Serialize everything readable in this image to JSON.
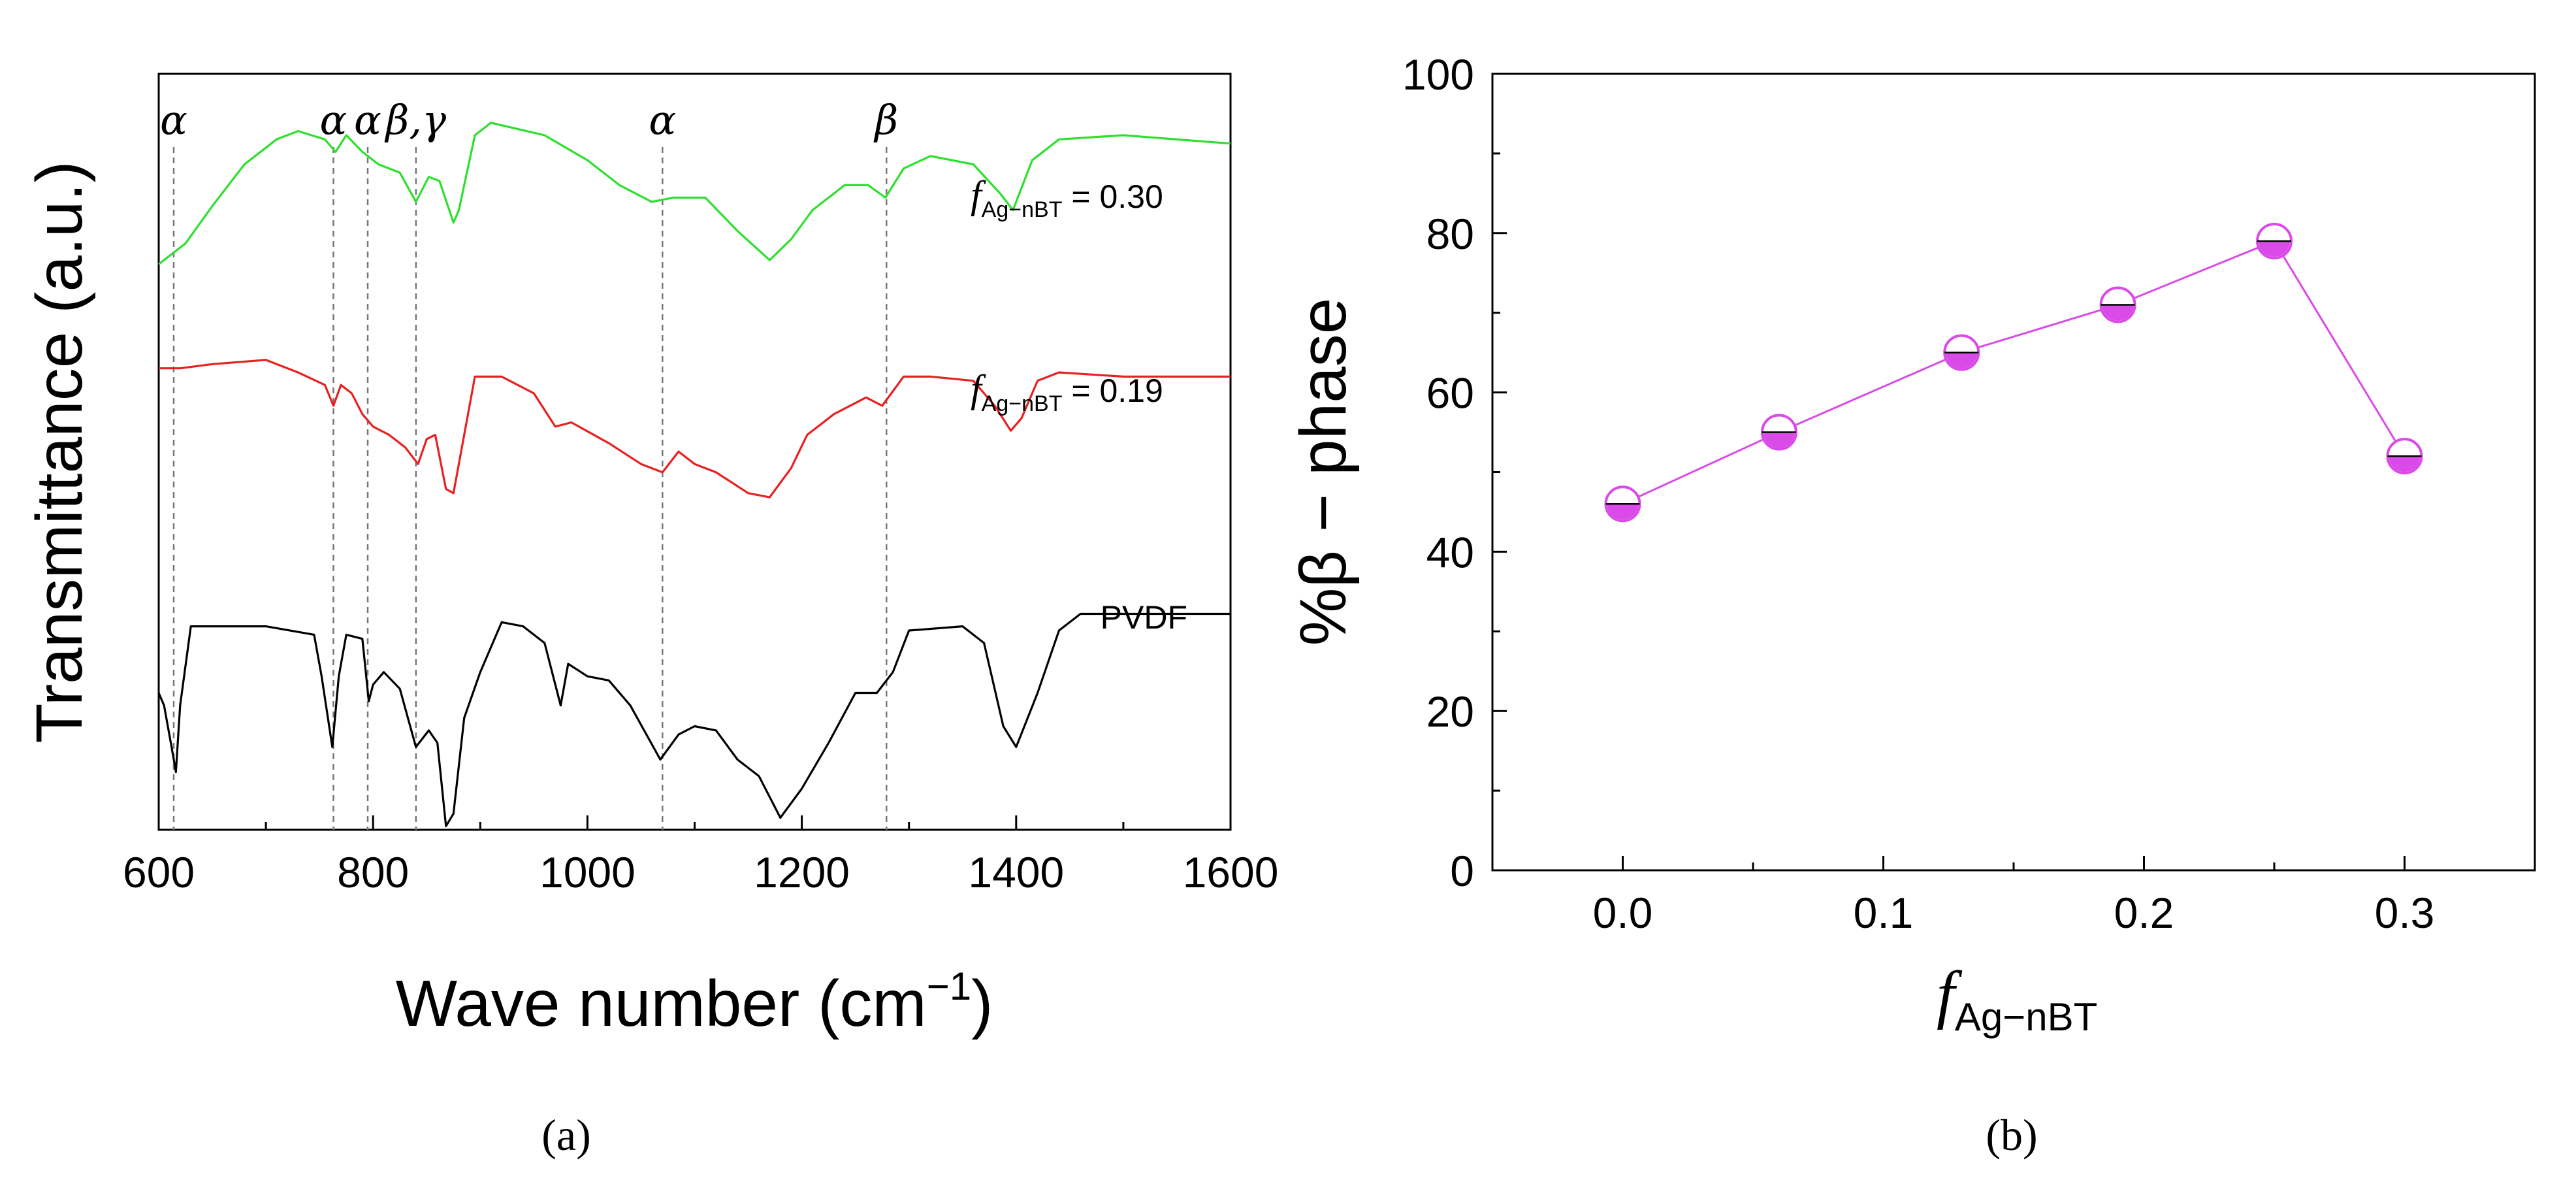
{
  "chart_data": [
    {
      "type": "line",
      "panel": "a",
      "caption": "(a)",
      "xlabel": "Wave number (cm",
      "xlabel_sup": "−1",
      "xlabel_close": ")",
      "ylabel": "Transmittance (a.u.)",
      "xlim": [
        600,
        1600
      ],
      "xticks": [
        "600",
        "800",
        "1000",
        "1200",
        "1400",
        "1600"
      ],
      "peak_markers": [
        {
          "label": "α",
          "x": 614
        },
        {
          "label": "α",
          "x": 763
        },
        {
          "label": "α",
          "x": 795
        },
        {
          "label": "β,γ",
          "x": 840
        },
        {
          "label": "α",
          "x": 1070
        },
        {
          "label": "β",
          "x": 1279
        }
      ],
      "series": [
        {
          "name": "PVDF",
          "label": "PVDF",
          "color": "#000000",
          "points": [
            [
              600,
              0.58
            ],
            [
              605,
              0.55
            ],
            [
              612,
              0.45
            ],
            [
              616,
              0.39
            ],
            [
              620,
              0.55
            ],
            [
              630,
              0.74
            ],
            [
              700,
              0.74
            ],
            [
              745,
              0.72
            ],
            [
              752,
              0.62
            ],
            [
              762,
              0.45
            ],
            [
              768,
              0.62
            ],
            [
              775,
              0.72
            ],
            [
              790,
              0.71
            ],
            [
              796,
              0.56
            ],
            [
              800,
              0.6
            ],
            [
              810,
              0.63
            ],
            [
              825,
              0.59
            ],
            [
              840,
              0.45
            ],
            [
              852,
              0.49
            ],
            [
              860,
              0.46
            ],
            [
              868,
              0.26
            ],
            [
              875,
              0.29
            ],
            [
              885,
              0.52
            ],
            [
              900,
              0.63
            ],
            [
              920,
              0.75
            ],
            [
              940,
              0.74
            ],
            [
              960,
              0.7
            ],
            [
              975,
              0.55
            ],
            [
              982,
              0.65
            ],
            [
              1000,
              0.62
            ],
            [
              1020,
              0.61
            ],
            [
              1040,
              0.55
            ],
            [
              1068,
              0.42
            ],
            [
              1085,
              0.48
            ],
            [
              1100,
              0.5
            ],
            [
              1120,
              0.49
            ],
            [
              1140,
              0.42
            ],
            [
              1160,
              0.38
            ],
            [
              1180,
              0.28
            ],
            [
              1200,
              0.35
            ],
            [
              1225,
              0.46
            ],
            [
              1250,
              0.58
            ],
            [
              1270,
              0.58
            ],
            [
              1285,
              0.63
            ],
            [
              1300,
              0.73
            ],
            [
              1350,
              0.74
            ],
            [
              1370,
              0.7
            ],
            [
              1388,
              0.5
            ],
            [
              1400,
              0.45
            ],
            [
              1420,
              0.58
            ],
            [
              1440,
              0.73
            ],
            [
              1460,
              0.77
            ],
            [
              1600,
              0.77
            ]
          ]
        },
        {
          "name": "f_Ag-nBT = 0.19",
          "label_f": "f",
          "label_sub": "Ag−nBT",
          "label_val": " = 0.19",
          "color": "#e82020",
          "points": [
            [
              600,
              1.36
            ],
            [
              620,
              1.36
            ],
            [
              650,
              1.37
            ],
            [
              700,
              1.38
            ],
            [
              730,
              1.35
            ],
            [
              755,
              1.32
            ],
            [
              763,
              1.27
            ],
            [
              770,
              1.32
            ],
            [
              780,
              1.3
            ],
            [
              790,
              1.25
            ],
            [
              800,
              1.22
            ],
            [
              815,
              1.2
            ],
            [
              830,
              1.17
            ],
            [
              842,
              1.13
            ],
            [
              850,
              1.19
            ],
            [
              858,
              1.2
            ],
            [
              868,
              1.07
            ],
            [
              875,
              1.06
            ],
            [
              885,
              1.2
            ],
            [
              895,
              1.34
            ],
            [
              920,
              1.34
            ],
            [
              950,
              1.3
            ],
            [
              970,
              1.22
            ],
            [
              985,
              1.23
            ],
            [
              1020,
              1.18
            ],
            [
              1050,
              1.13
            ],
            [
              1070,
              1.11
            ],
            [
              1085,
              1.16
            ],
            [
              1100,
              1.13
            ],
            [
              1120,
              1.11
            ],
            [
              1150,
              1.06
            ],
            [
              1170,
              1.05
            ],
            [
              1190,
              1.12
            ],
            [
              1205,
              1.2
            ],
            [
              1230,
              1.25
            ],
            [
              1260,
              1.29
            ],
            [
              1275,
              1.27
            ],
            [
              1295,
              1.34
            ],
            [
              1320,
              1.34
            ],
            [
              1360,
              1.33
            ],
            [
              1380,
              1.27
            ],
            [
              1395,
              1.21
            ],
            [
              1405,
              1.24
            ],
            [
              1420,
              1.33
            ],
            [
              1440,
              1.35
            ],
            [
              1500,
              1.34
            ],
            [
              1600,
              1.34
            ]
          ]
        },
        {
          "name": "f_Ag-nBT = 0.30",
          "label_f": "f",
          "label_sub": "Ag−nBT",
          "label_val": " = 0.30",
          "color": "#2de02d",
          "points": [
            [
              600,
              1.61
            ],
            [
              625,
              1.66
            ],
            [
              650,
              1.75
            ],
            [
              680,
              1.85
            ],
            [
              710,
              1.91
            ],
            [
              730,
              1.93
            ],
            [
              755,
              1.91
            ],
            [
              765,
              1.88
            ],
            [
              775,
              1.92
            ],
            [
              790,
              1.88
            ],
            [
              805,
              1.85
            ],
            [
              825,
              1.83
            ],
            [
              840,
              1.76
            ],
            [
              852,
              1.82
            ],
            [
              862,
              1.81
            ],
            [
              875,
              1.71
            ],
            [
              880,
              1.74
            ],
            [
              895,
              1.92
            ],
            [
              910,
              1.95
            ],
            [
              960,
              1.92
            ],
            [
              1000,
              1.86
            ],
            [
              1030,
              1.8
            ],
            [
              1060,
              1.76
            ],
            [
              1080,
              1.77
            ],
            [
              1110,
              1.77
            ],
            [
              1140,
              1.69
            ],
            [
              1170,
              1.62
            ],
            [
              1190,
              1.67
            ],
            [
              1210,
              1.74
            ],
            [
              1240,
              1.8
            ],
            [
              1262,
              1.8
            ],
            [
              1278,
              1.77
            ],
            [
              1295,
              1.84
            ],
            [
              1320,
              1.87
            ],
            [
              1360,
              1.85
            ],
            [
              1385,
              1.78
            ],
            [
              1397,
              1.74
            ],
            [
              1415,
              1.86
            ],
            [
              1440,
              1.91
            ],
            [
              1500,
              1.92
            ],
            [
              1600,
              1.9
            ]
          ]
        }
      ]
    },
    {
      "type": "scatter",
      "panel": "b",
      "caption": "(b)",
      "xlabel_f": "f",
      "xlabel_sub": "Ag−nBT",
      "ylabel": "%β − phase",
      "xlim": [
        -0.05,
        0.35
      ],
      "ylim": [
        0,
        100
      ],
      "xticks": [
        "0.0",
        "0.1",
        "0.2",
        "0.3"
      ],
      "yticks": [
        "0",
        "20",
        "40",
        "60",
        "80",
        "100"
      ],
      "color": "#d94ae8",
      "x": [
        0.0,
        0.06,
        0.13,
        0.19,
        0.25,
        0.3
      ],
      "y": [
        46,
        55,
        65,
        71,
        79,
        52
      ]
    }
  ]
}
